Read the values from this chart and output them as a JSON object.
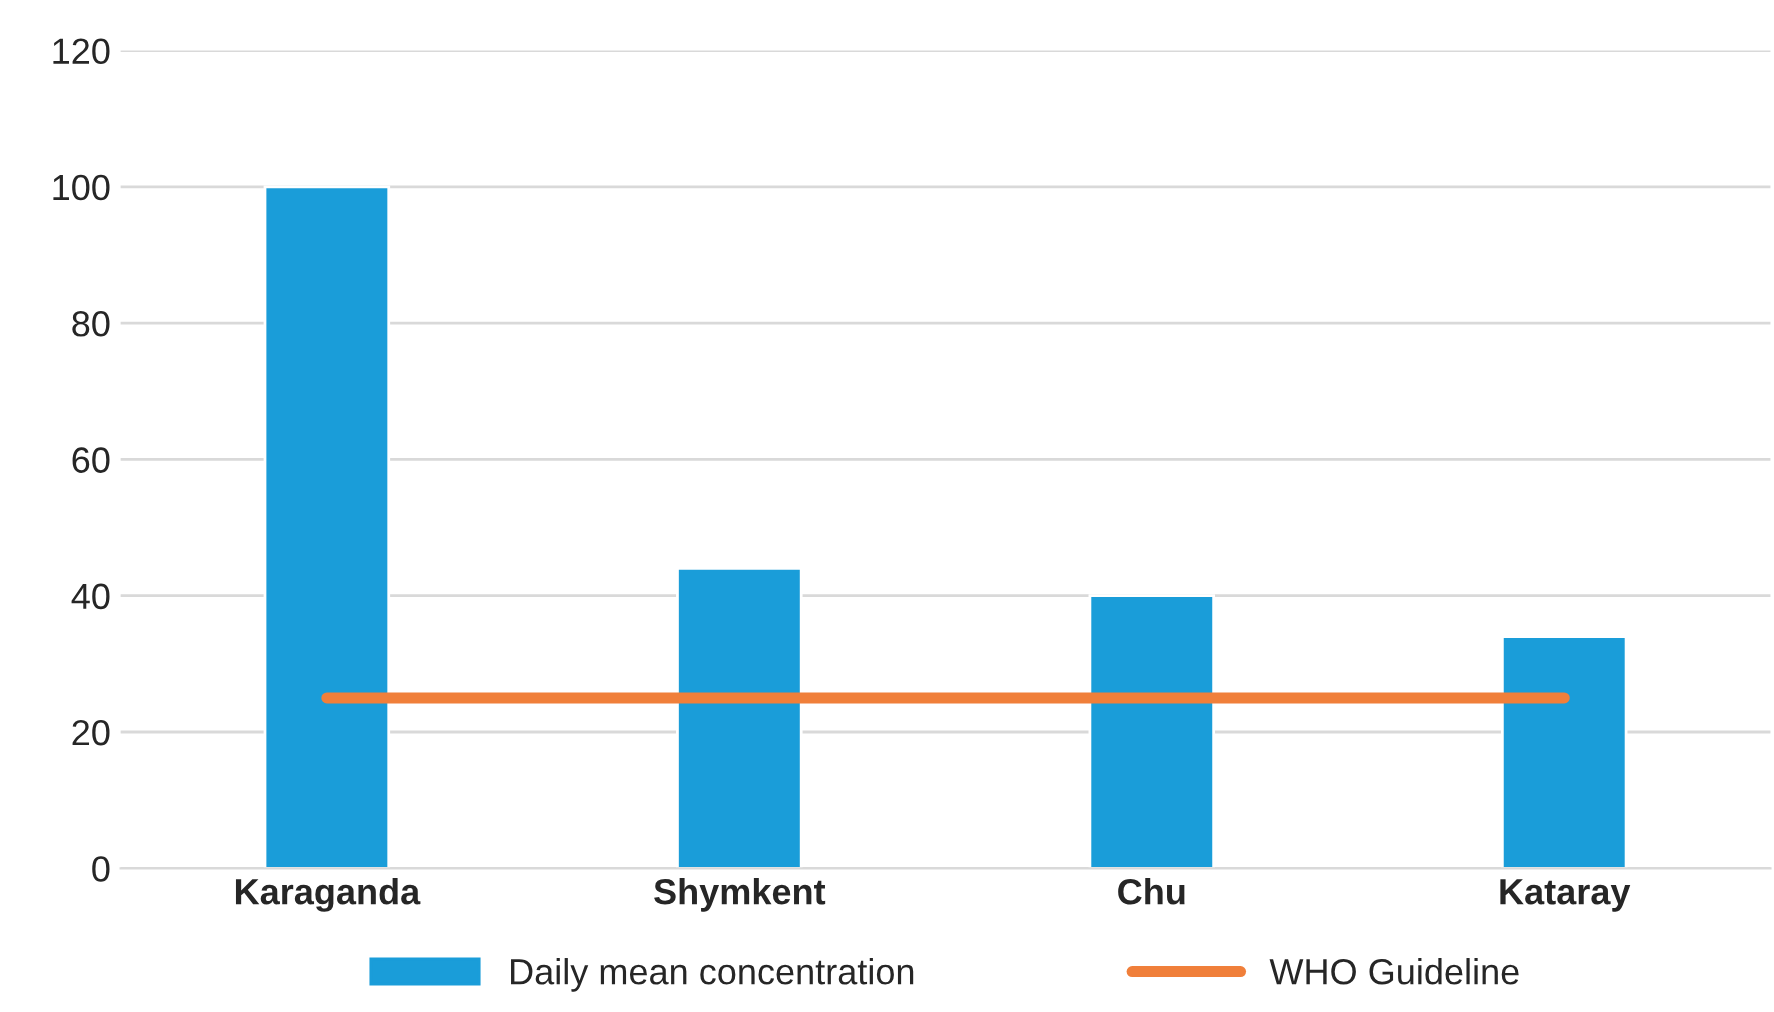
{
  "chart_data": {
    "type": "bar",
    "categories": [
      "Karaganda",
      "Shymkent",
      "Chu",
      "Kataray"
    ],
    "series": [
      {
        "name": "Daily mean concentration",
        "color": "#1a9dd9",
        "values": [
          100,
          44,
          40,
          34
        ]
      },
      {
        "name": "WHO Guideline",
        "type": "line",
        "color": "#f07f3a",
        "values": [
          25,
          25,
          25,
          25
        ]
      }
    ],
    "ylim": [
      0,
      120
    ],
    "yticks": [
      0,
      20,
      40,
      60,
      80,
      100,
      120
    ],
    "grid": "y",
    "legend": "bottom",
    "marker": "none",
    "line_style": "solid"
  }
}
